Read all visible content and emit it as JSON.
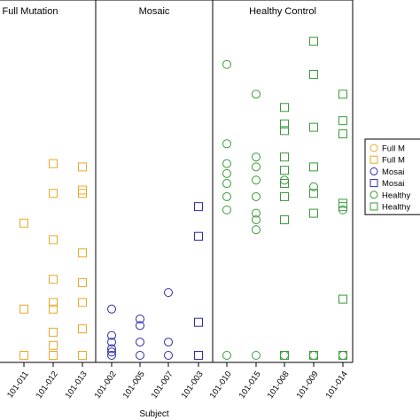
{
  "chart_data": {
    "type": "scatter",
    "xlabel": "Subject",
    "ylabel": "",
    "grid": false,
    "legend_placement": "right",
    "panels": [
      {
        "title": "Full Mutation",
        "categories": [
          "101-006",
          "101-011",
          "101-012",
          "101-013"
        ]
      },
      {
        "title": "Mosaic",
        "categories": [
          "101-002",
          "101-005",
          "101-007",
          "101-003"
        ]
      },
      {
        "title": "Healthy Control",
        "categories": [
          "101-010",
          "101-015",
          "101-008",
          "101-009",
          "101-014"
        ]
      }
    ],
    "y_range": [
      0,
      100
    ],
    "series": [
      {
        "name": "Full M",
        "marker": "circle",
        "color": "#E8A928",
        "points": []
      },
      {
        "name": "Full M",
        "marker": "square",
        "color": "#E8A928",
        "points": [
          [
            "101-011",
            40
          ],
          [
            "101-011",
            14
          ],
          [
            "101-011",
            0
          ],
          [
            "101-012",
            58
          ],
          [
            "101-012",
            49
          ],
          [
            "101-012",
            35
          ],
          [
            "101-012",
            23
          ],
          [
            "101-012",
            16
          ],
          [
            "101-012",
            14
          ],
          [
            "101-012",
            7
          ],
          [
            "101-012",
            3
          ],
          [
            "101-012",
            0
          ],
          [
            "101-013",
            57
          ],
          [
            "101-013",
            50
          ],
          [
            "101-013",
            49
          ],
          [
            "101-013",
            31
          ],
          [
            "101-013",
            22
          ],
          [
            "101-013",
            16
          ],
          [
            "101-013",
            8
          ],
          [
            "101-013",
            0
          ]
        ]
      },
      {
        "name": "Mosai",
        "marker": "circle",
        "color": "#2B2BA6",
        "points": [
          [
            "101-002",
            14
          ],
          [
            "101-002",
            6
          ],
          [
            "101-002",
            4
          ],
          [
            "101-002",
            2
          ],
          [
            "101-002",
            1
          ],
          [
            "101-002",
            0
          ],
          [
            "101-005",
            11
          ],
          [
            "101-005",
            9
          ],
          [
            "101-005",
            4
          ],
          [
            "101-005",
            0
          ],
          [
            "101-007",
            19
          ],
          [
            "101-007",
            4
          ],
          [
            "101-007",
            0
          ]
        ]
      },
      {
        "name": "Mosai",
        "marker": "square",
        "color": "#2B2BA6",
        "points": [
          [
            "101-003",
            45
          ],
          [
            "101-003",
            36
          ],
          [
            "101-003",
            10
          ],
          [
            "101-003",
            0
          ]
        ]
      },
      {
        "name": "Healthy",
        "marker": "circle",
        "color": "#3A9A3A",
        "points": [
          [
            "101-010",
            88
          ],
          [
            "101-010",
            64
          ],
          [
            "101-010",
            58
          ],
          [
            "101-010",
            55
          ],
          [
            "101-010",
            52
          ],
          [
            "101-010",
            48
          ],
          [
            "101-010",
            44
          ],
          [
            "101-010",
            0
          ],
          [
            "101-015",
            79
          ],
          [
            "101-015",
            60
          ],
          [
            "101-015",
            57
          ],
          [
            "101-015",
            53
          ],
          [
            "101-015",
            48
          ],
          [
            "101-015",
            43
          ],
          [
            "101-015",
            41
          ],
          [
            "101-015",
            38
          ],
          [
            "101-015",
            0
          ],
          [
            "101-008",
            53
          ],
          [
            "101-008",
            0
          ],
          [
            "101-009",
            51
          ],
          [
            "101-009",
            0
          ],
          [
            "101-014",
            44
          ],
          [
            "101-014",
            0
          ]
        ]
      },
      {
        "name": "Healthy",
        "marker": "square",
        "color": "#3A9A3A",
        "points": [
          [
            "101-008",
            75
          ],
          [
            "101-008",
            70
          ],
          [
            "101-008",
            68
          ],
          [
            "101-008",
            60
          ],
          [
            "101-008",
            56
          ],
          [
            "101-008",
            52
          ],
          [
            "101-008",
            48
          ],
          [
            "101-008",
            41
          ],
          [
            "101-008",
            0
          ],
          [
            "101-009",
            95
          ],
          [
            "101-009",
            85
          ],
          [
            "101-009",
            69
          ],
          [
            "101-009",
            57
          ],
          [
            "101-009",
            49
          ],
          [
            "101-009",
            43
          ],
          [
            "101-009",
            0
          ],
          [
            "101-014",
            79
          ],
          [
            "101-014",
            71
          ],
          [
            "101-014",
            67
          ],
          [
            "101-014",
            46
          ],
          [
            "101-014",
            45
          ],
          [
            "101-014",
            17
          ],
          [
            "101-014",
            0
          ]
        ]
      }
    ]
  }
}
